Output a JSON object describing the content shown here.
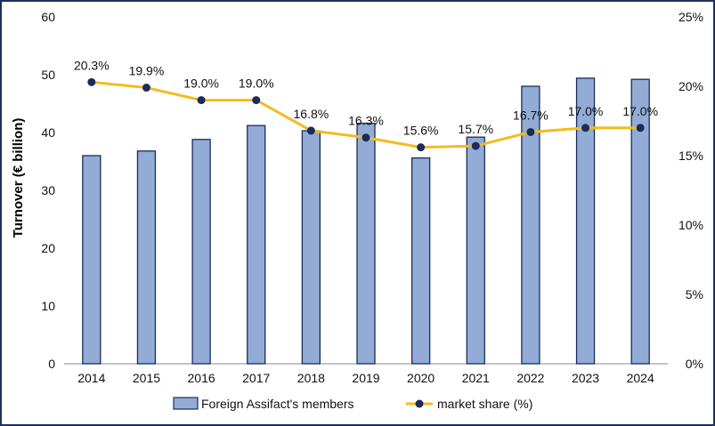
{
  "chart_data": {
    "type": "bar",
    "categories": [
      "2014",
      "2015",
      "2016",
      "2017",
      "2018",
      "2019",
      "2020",
      "2021",
      "2022",
      "2023",
      "2024"
    ],
    "series": [
      {
        "name": "Foreign Assifact's members",
        "type": "bar",
        "axis": "left",
        "color": "#92acd6",
        "values": [
          36.0,
          36.8,
          38.8,
          41.2,
          40.3,
          41.6,
          35.6,
          39.2,
          48.0,
          49.4,
          49.2
        ]
      },
      {
        "name": "market share (%)",
        "type": "line",
        "axis": "right",
        "color": "#f4bb1f",
        "marker_color": "#1b2c5a",
        "values": [
          20.3,
          19.9,
          19.0,
          19.0,
          16.8,
          16.3,
          15.6,
          15.7,
          16.7,
          17.0,
          17.0
        ],
        "labels": [
          "20.3%",
          "19.9%",
          "19.0%",
          "19.0%",
          "16.8%",
          "16.3%",
          "15.6%",
          "15.7%",
          "16.7%",
          "17.0%",
          "17.0%"
        ]
      }
    ],
    "ylabel": "Turnover (€ billion)",
    "ylim": [
      0,
      60
    ],
    "yticks": [
      "0",
      "10",
      "20",
      "30",
      "40",
      "50",
      "60"
    ],
    "y2lim": [
      0,
      25
    ],
    "y2ticks": [
      "0%",
      "5%",
      "10%",
      "15%",
      "20%",
      "25%"
    ],
    "legend_position": "bottom",
    "grid": false
  }
}
